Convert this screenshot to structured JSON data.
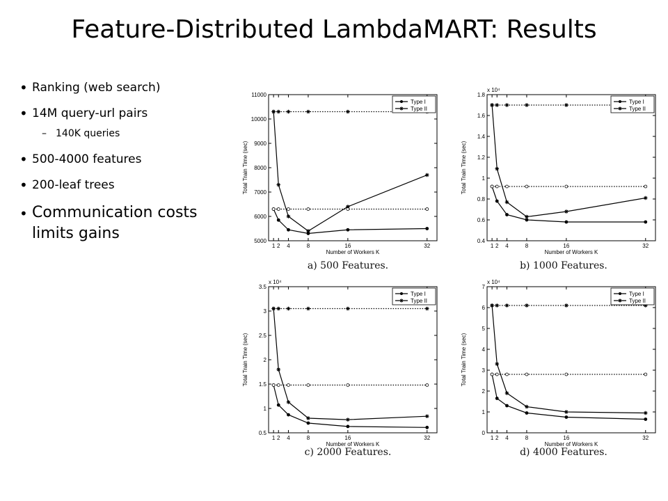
{
  "slide": {
    "title": "Feature-Distributed LambdaMART:  Results",
    "bullets": [
      {
        "text": "Ranking (web search)",
        "level": 1
      },
      {
        "text": "14M query-url pairs",
        "level": 1
      },
      {
        "text": "140K queries",
        "level": 2
      },
      {
        "text": "500-4000 features",
        "level": 1
      },
      {
        "text": "200-leaf trees",
        "level": 1
      },
      {
        "text": "Communication costs limits gains",
        "level": "big"
      }
    ],
    "bullet_glyph": "•",
    "dash_glyph": "–"
  },
  "chart_data": [
    {
      "type": "line",
      "caption": "a) 500 Features.",
      "xlabel": "Number of Workers K",
      "ylabel": "Total Train Time (sec)",
      "exponent": "",
      "x": [
        1,
        2,
        4,
        8,
        16,
        32
      ],
      "xticks": [
        1,
        2,
        4,
        8,
        16,
        32
      ],
      "xlim": [
        0,
        34
      ],
      "ylim": [
        5000,
        11000
      ],
      "yticks": [
        5000,
        6000,
        7000,
        8000,
        9000,
        10000,
        11000
      ],
      "yticklabels": [
        "5000",
        "6000",
        "7000",
        "8000",
        "9000",
        "10000",
        "11000"
      ],
      "legend": "top-right",
      "series": [
        {
          "name": "Type I",
          "values": [
            6300,
            5850,
            5450,
            5300,
            5450,
            5500
          ],
          "marker": "circle",
          "style": "solid"
        },
        {
          "name": "Type II",
          "values": [
            10300,
            7300,
            6000,
            5400,
            6400,
            7700
          ],
          "marker": "star",
          "style": "solid"
        },
        {
          "name": "",
          "values": [
            6300,
            6300,
            6300,
            6300,
            6300,
            6300
          ],
          "marker": "circle",
          "style": "dotted"
        },
        {
          "name": "",
          "values": [
            10300,
            10300,
            10300,
            10300,
            10300,
            10300
          ],
          "marker": "star",
          "style": "dotted"
        }
      ]
    },
    {
      "type": "line",
      "caption": "b) 1000 Features.",
      "xlabel": "Number of Workers K",
      "ylabel": "Total Train Time (sec)",
      "exponent": "x 10⁴",
      "x": [
        1,
        2,
        4,
        8,
        16,
        32
      ],
      "xticks": [
        1,
        2,
        4,
        8,
        16,
        32
      ],
      "xlim": [
        0,
        34
      ],
      "ylim": [
        0.4,
        1.8
      ],
      "yticks": [
        0.4,
        0.6,
        0.8,
        1.0,
        1.2,
        1.4,
        1.6,
        1.8
      ],
      "yticklabels": [
        "0.4",
        "0.6",
        "0.8",
        "1",
        "1.2",
        "1.4",
        "1.6",
        "1.8"
      ],
      "legend": "top-right",
      "series": [
        {
          "name": "Type I",
          "values": [
            0.92,
            0.78,
            0.65,
            0.6,
            0.58,
            0.58
          ],
          "marker": "circle",
          "style": "solid"
        },
        {
          "name": "Type II",
          "values": [
            1.7,
            1.09,
            0.77,
            0.63,
            0.68,
            0.81
          ],
          "marker": "star",
          "style": "solid"
        },
        {
          "name": "",
          "values": [
            0.92,
            0.92,
            0.92,
            0.92,
            0.92,
            0.92
          ],
          "marker": "circle",
          "style": "dotted"
        },
        {
          "name": "",
          "values": [
            1.7,
            1.7,
            1.7,
            1.7,
            1.7,
            1.7
          ],
          "marker": "star",
          "style": "dotted"
        }
      ]
    },
    {
      "type": "line",
      "caption": "c) 2000 Features.",
      "xlabel": "Number of Workers K",
      "ylabel": "Total Train Time (sec)",
      "exponent": "x 10⁴",
      "x": [
        1,
        2,
        4,
        8,
        16,
        32
      ],
      "xticks": [
        1,
        2,
        4,
        8,
        16,
        32
      ],
      "xlim": [
        0,
        34
      ],
      "ylim": [
        0.5,
        3.5
      ],
      "yticks": [
        0.5,
        1.0,
        1.5,
        2.0,
        2.5,
        3.0,
        3.5
      ],
      "yticklabels": [
        "0.5",
        "1",
        "1.5",
        "2",
        "2.5",
        "3",
        "3.5"
      ],
      "legend": "top-right",
      "series": [
        {
          "name": "Type I",
          "values": [
            1.48,
            1.07,
            0.87,
            0.7,
            0.63,
            0.61
          ],
          "marker": "circle",
          "style": "solid"
        },
        {
          "name": "Type II",
          "values": [
            3.05,
            1.8,
            1.13,
            0.8,
            0.77,
            0.84
          ],
          "marker": "star",
          "style": "solid"
        },
        {
          "name": "",
          "values": [
            1.48,
            1.48,
            1.48,
            1.48,
            1.48,
            1.48
          ],
          "marker": "circle",
          "style": "dotted"
        },
        {
          "name": "",
          "values": [
            3.05,
            3.05,
            3.05,
            3.05,
            3.05,
            3.05
          ],
          "marker": "star",
          "style": "dotted"
        }
      ]
    },
    {
      "type": "line",
      "caption": "d) 4000 Features.",
      "xlabel": "Number of Workers K",
      "ylabel": "Total Train Time (sec)",
      "exponent": "x 10⁴",
      "x": [
        1,
        2,
        4,
        8,
        16,
        32
      ],
      "xticks": [
        1,
        2,
        4,
        8,
        16,
        32
      ],
      "xlim": [
        0,
        34
      ],
      "ylim": [
        0,
        7
      ],
      "yticks": [
        0,
        1,
        2,
        3,
        4,
        5,
        6,
        7
      ],
      "yticklabels": [
        "0",
        "1",
        "2",
        "3",
        "4",
        "5",
        "6",
        "7"
      ],
      "legend": "top-right",
      "series": [
        {
          "name": "Type I",
          "values": [
            2.8,
            1.65,
            1.3,
            0.95,
            0.75,
            0.65
          ],
          "marker": "circle",
          "style": "solid"
        },
        {
          "name": "Type II",
          "values": [
            6.1,
            3.3,
            1.9,
            1.25,
            1.0,
            0.95
          ],
          "marker": "star",
          "style": "solid"
        },
        {
          "name": "",
          "values": [
            2.8,
            2.8,
            2.8,
            2.8,
            2.8,
            2.8
          ],
          "marker": "circle",
          "style": "dotted"
        },
        {
          "name": "",
          "values": [
            6.1,
            6.1,
            6.1,
            6.1,
            6.1,
            6.1
          ],
          "marker": "star",
          "style": "dotted"
        }
      ]
    }
  ]
}
